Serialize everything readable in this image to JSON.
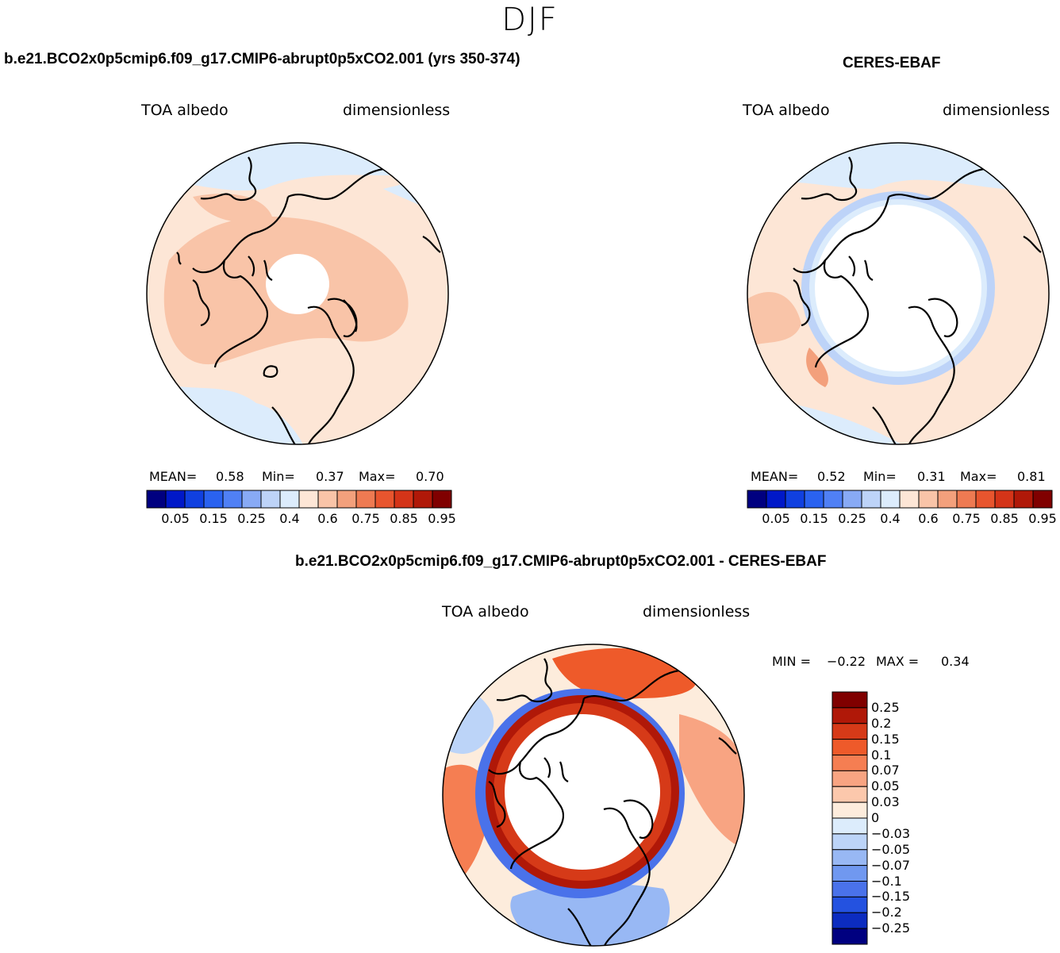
{
  "season": "DJF",
  "panels": {
    "model": {
      "case_title": "b.e21.BCO2x0p5cmip6.f09_g17.CMIP6-abrupt0p5xCO2.001 (yrs 350-374)",
      "variable": "TOA albedo",
      "units": "dimensionless",
      "mean_label": "MEAN=",
      "mean": "0.58",
      "min_label": "Min=",
      "min": "0.37",
      "max_label": "Max=",
      "max": "0.70"
    },
    "obs": {
      "case_title": "CERES-EBAF",
      "variable": "TOA albedo",
      "units": "dimensionless",
      "mean_label": "MEAN=",
      "mean": "0.52",
      "min_label": "Min=",
      "min": "0.31",
      "max_label": "Max=",
      "max": "0.81"
    },
    "diff": {
      "case_title": "b.e21.BCO2x0p5cmip6.f09_g17.CMIP6-abrupt0p5xCO2.001 - CERES-EBAF",
      "variable": "TOA albedo",
      "units": "dimensionless",
      "min_label": "MIN =",
      "min": "−0.22",
      "max_label": "MAX =",
      "max": "0.34"
    }
  },
  "colorbars": {
    "abs": {
      "colors": [
        "#000080",
        "#0018c8",
        "#1040e0",
        "#2a62f0",
        "#5080f5",
        "#88aaf5",
        "#bdd3f8",
        "#dcecfc",
        "#fde6d6",
        "#f9c4a8",
        "#f3a07c",
        "#ee7a52",
        "#e8552e",
        "#d43418",
        "#b01808",
        "#800000"
      ],
      "labels": [
        "0.05",
        "0.15",
        "0.25",
        "0.4",
        "0.6",
        "0.75",
        "0.85",
        "0.95"
      ]
    },
    "diff": {
      "colors_top_to_bottom": [
        "#800000",
        "#b01808",
        "#d63a18",
        "#ee5a2a",
        "#f57e52",
        "#f8a482",
        "#fcc8ac",
        "#fdecdc",
        "#dcecfc",
        "#bcd4f8",
        "#98b8f4",
        "#7098f0",
        "#4a72ea",
        "#2452e0",
        "#0c2cc0",
        "#000080"
      ],
      "labels": [
        "0.25",
        "0.2",
        "0.15",
        "0.1",
        "0.07",
        "0.05",
        "0.03",
        "0",
        "−0.03",
        "−0.05",
        "−0.07",
        "−0.1",
        "−0.15",
        "−0.2",
        "−0.25"
      ]
    }
  },
  "colors": {
    "land_outline": "#000000",
    "missing": "#ffffff"
  }
}
